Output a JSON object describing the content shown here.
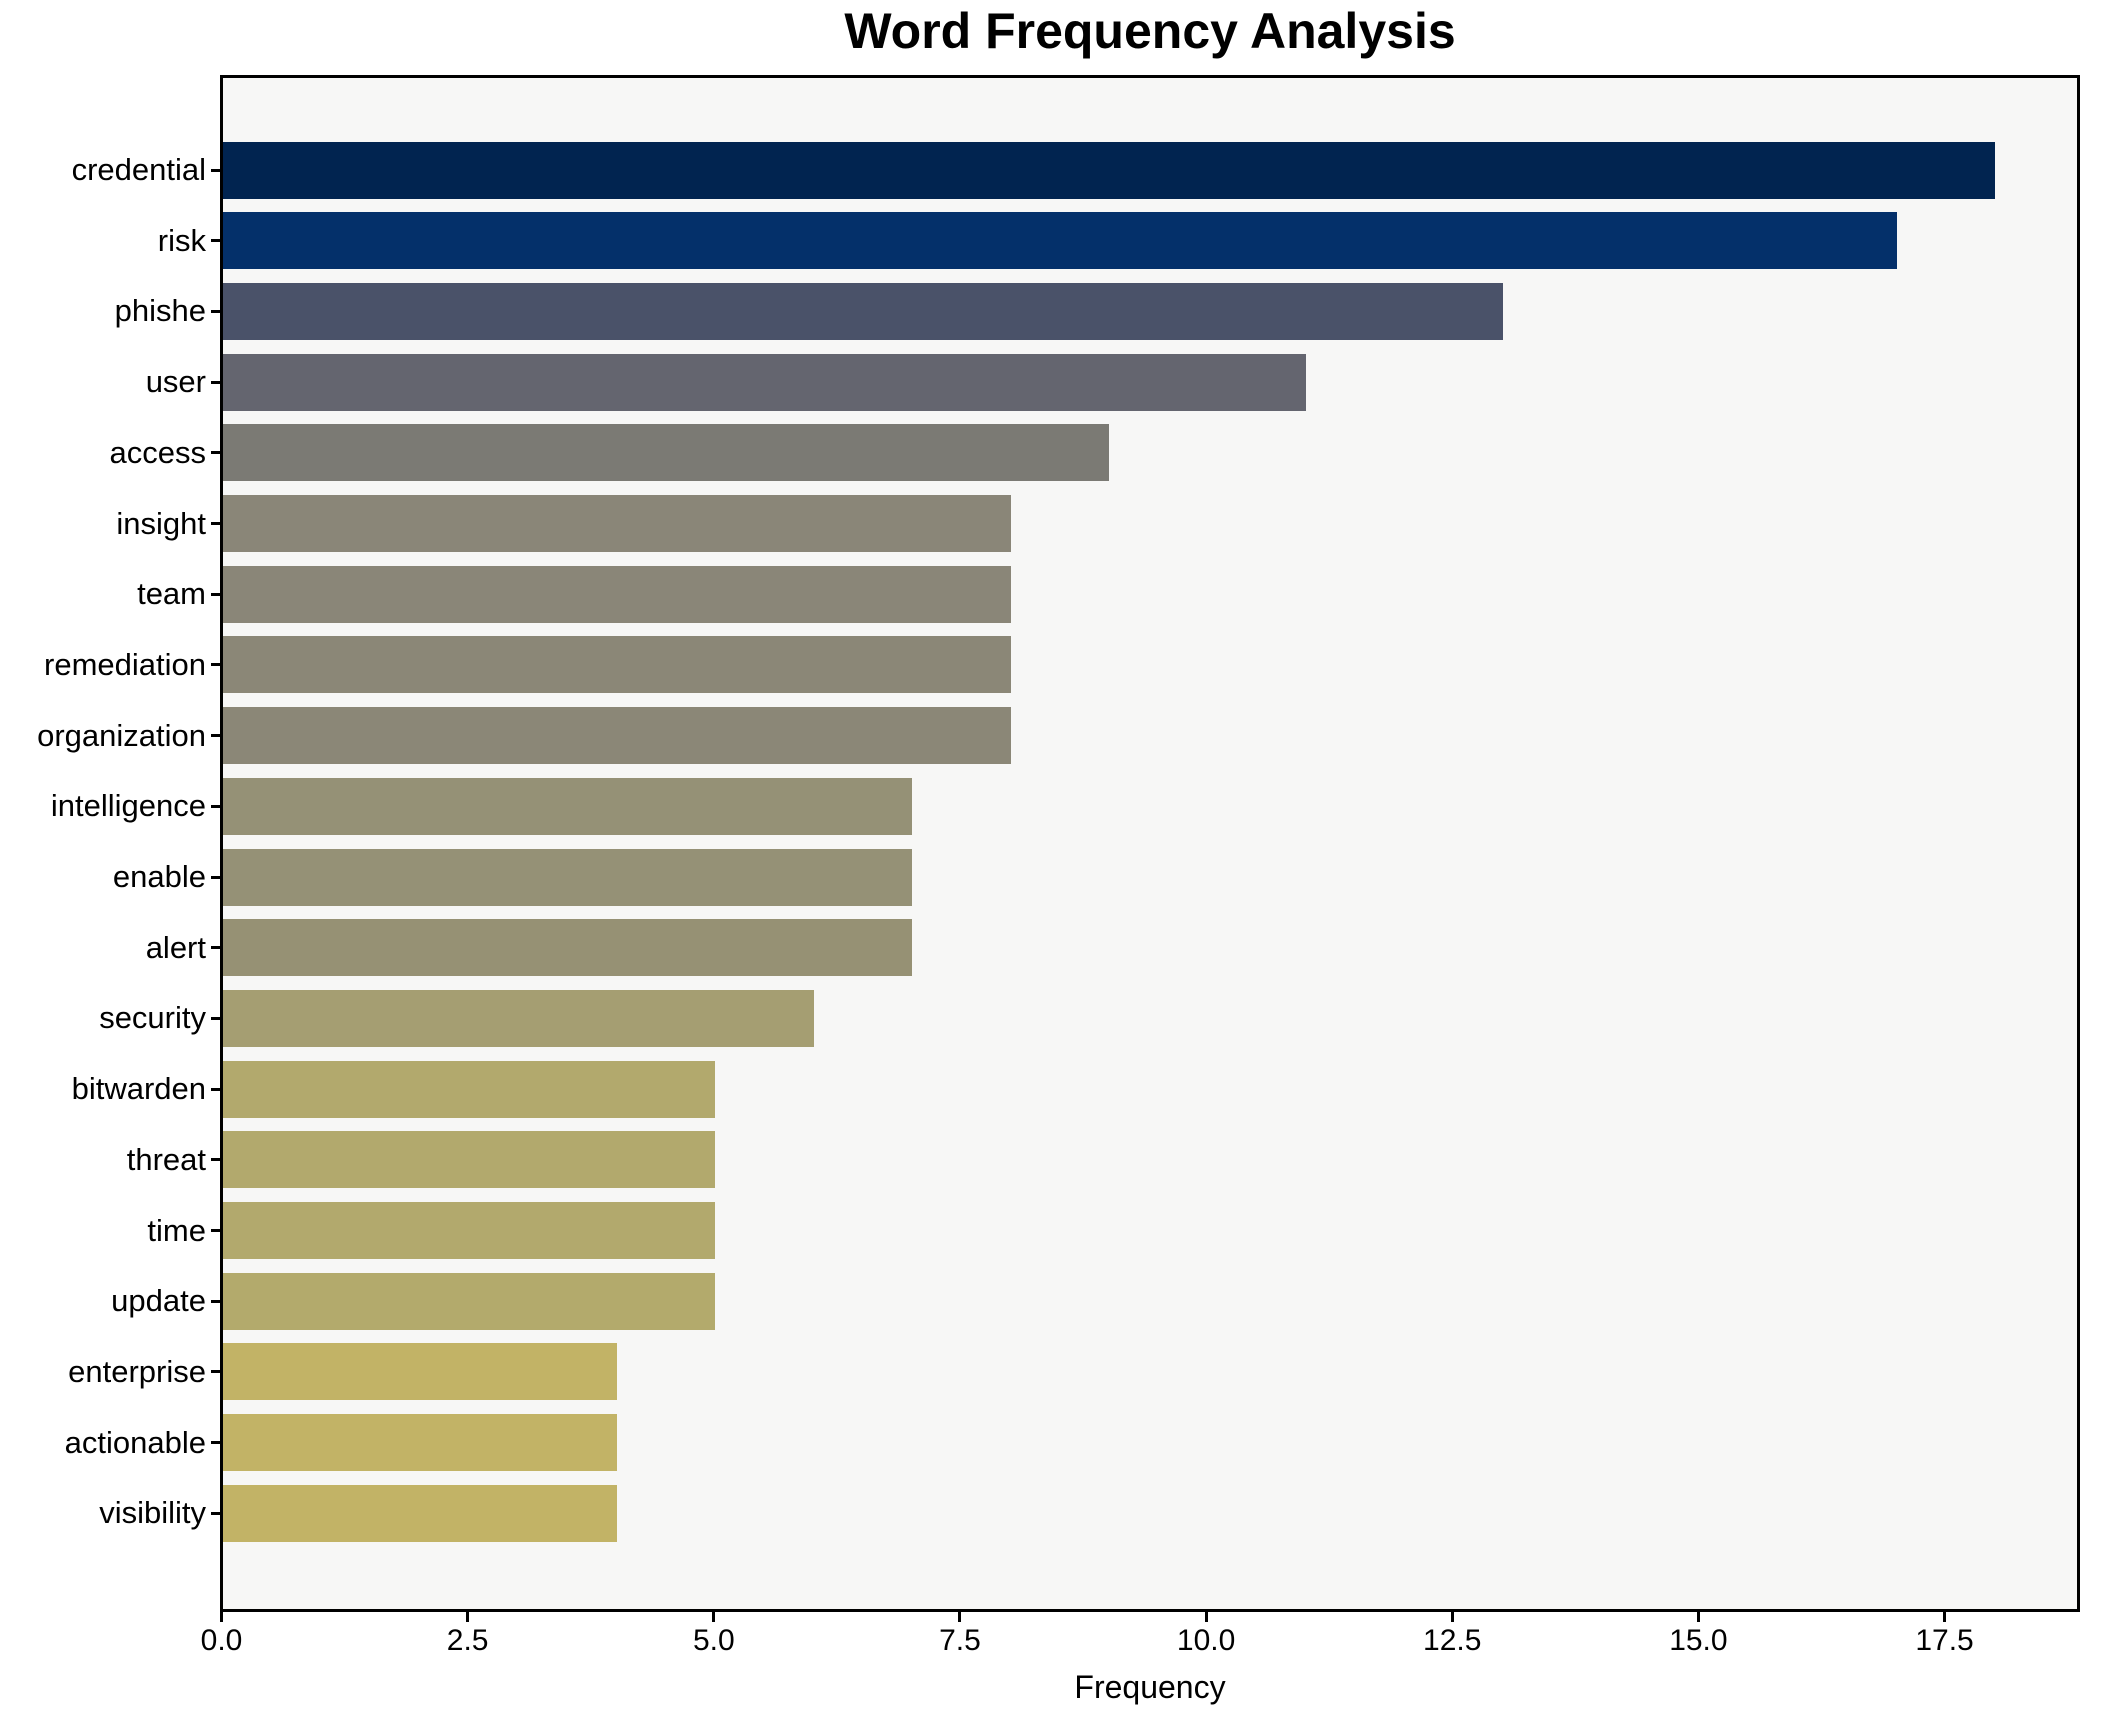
{
  "chart_data": {
    "type": "bar",
    "orientation": "horizontal",
    "title": "Word Frequency Analysis",
    "xlabel": "Frequency",
    "ylabel": "",
    "categories": [
      "credential",
      "risk",
      "phishe",
      "user",
      "access",
      "insight",
      "team",
      "remediation",
      "organization",
      "intelligence",
      "enable",
      "alert",
      "security",
      "bitwarden",
      "threat",
      "time",
      "update",
      "enterprise",
      "actionable",
      "visibility"
    ],
    "values": [
      18,
      17,
      13,
      11,
      9,
      8,
      8,
      8,
      8,
      7,
      7,
      7,
      6,
      5,
      5,
      5,
      5,
      4,
      4,
      4
    ],
    "bar_colors": [
      "#012450",
      "#04306a",
      "#4a5269",
      "#64656f",
      "#7b7a74",
      "#8a8678",
      "#8a8678",
      "#8b8777",
      "#8b8777",
      "#959176",
      "#959176",
      "#969174",
      "#a59e72",
      "#b2a96d",
      "#b2a96d",
      "#b2a96d",
      "#b3aa6c",
      "#c2b366",
      "#c2b366",
      "#c2b366"
    ],
    "xticks": [
      0,
      2.5,
      5,
      7.5,
      10,
      12.5,
      15,
      17.5
    ],
    "xtick_labels": [
      "0.0",
      "2.5",
      "5.0",
      "7.5",
      "10.0",
      "12.5",
      "15.0",
      "17.5"
    ],
    "xlim": [
      0,
      18.9
    ],
    "grid": false,
    "legend": null,
    "colormap": "cividis_r",
    "plot_bg": "#f7f7f6",
    "fig_bg": "#ffffff",
    "spine_color": "#000000",
    "text_color": "#000000"
  }
}
